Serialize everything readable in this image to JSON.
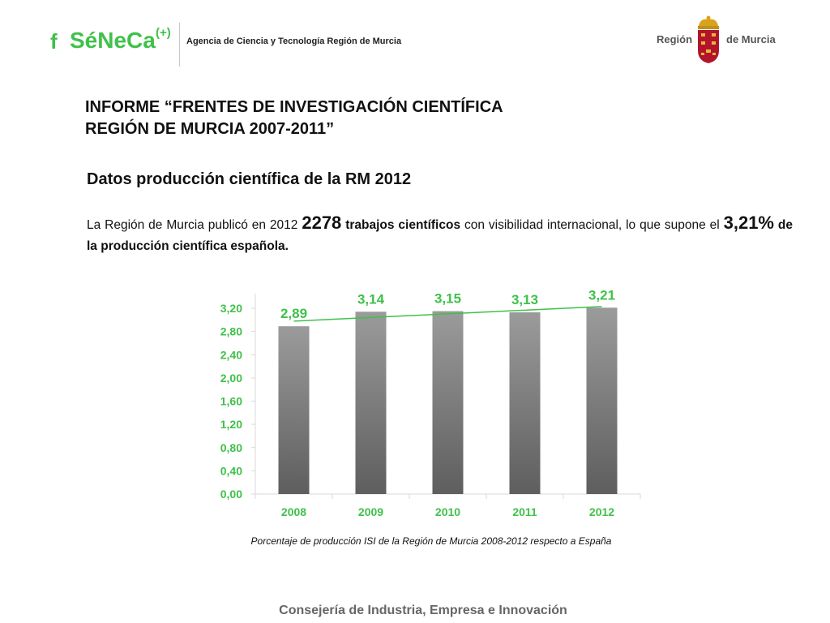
{
  "header": {
    "logo_f": "f",
    "logo_name": "SéNeCa",
    "logo_plus": "(+)",
    "agency": "Agencia de Ciencia y Tecnología Región de Murcia",
    "region_left": "Región",
    "region_right": "de Murcia"
  },
  "report_title": {
    "line1": "INFORME “FRENTES DE INVESTIGACIÓN CIENTÍFICA",
    "line2": "REGIÓN DE MURCIA 2007-2011”"
  },
  "section_title": "Datos producción científica de la RM  2012",
  "paragraph": {
    "part1": "La Región de Murcia publicó en 2012 ",
    "count": "2278",
    "part2": " trabajos científicos",
    "part3": " con visibilidad internacional, lo que supone el ",
    "percent": "3,21%",
    "part4": " de la producción científica española."
  },
  "chart_data": {
    "type": "bar",
    "categories": [
      "2008",
      "2009",
      "2010",
      "2011",
      "2012"
    ],
    "values": [
      2.89,
      3.14,
      3.15,
      3.13,
      3.21
    ],
    "data_labels": [
      "2,89",
      "3,14",
      "3,15",
      "3,13",
      "3,21"
    ],
    "y_ticks": [
      "0,00",
      "0,40",
      "0,80",
      "1,20",
      "1,60",
      "2,00",
      "2,40",
      "2,80",
      "3,20"
    ],
    "ylim": [
      0,
      3.4
    ],
    "trendline": "linear",
    "label_color": "#3fc14a",
    "trend_color": "#3fc14a",
    "bar_color_top": "#9b9b9b",
    "bar_color_bottom": "#5e5e5e",
    "grid": false
  },
  "caption": "Porcentaje de producción ISI de la Región de Murcia 2008-2012 respecto a España",
  "footer": "Consejería de Industria, Empresa e Innovación"
}
